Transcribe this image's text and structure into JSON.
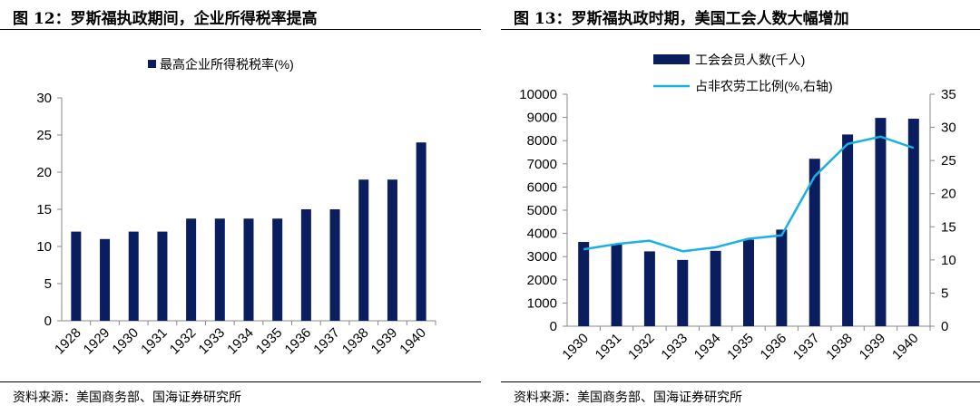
{
  "left": {
    "title": "图 12：罗斯福执政期间，企业所得税率提高",
    "source": "资料来源：美国商务部、国海证券研究所"
  },
  "right": {
    "title": "图 13：罗斯福执政时期，美国工会人数大幅增加",
    "source": "资料来源：美国商务部、国海证券研究所"
  },
  "chart_data": [
    {
      "type": "bar",
      "categories": [
        "1928",
        "1929",
        "1930",
        "1931",
        "1932",
        "1933",
        "1934",
        "1935",
        "1936",
        "1937",
        "1938",
        "1939",
        "1940"
      ],
      "series": [
        {
          "name": "最高企业所得税税率(%)",
          "values": [
            12,
            11,
            12,
            12,
            13.75,
            13.75,
            13.75,
            13.75,
            15,
            15,
            19,
            19,
            24
          ],
          "color": "#0a1d5e"
        }
      ],
      "ylim": [
        0,
        30
      ],
      "yticks": [
        "0",
        "5",
        "10",
        "15",
        "20",
        "25",
        "30"
      ],
      "legend_position": "top",
      "grid": false
    },
    {
      "type": "bar+line",
      "categories": [
        "1930",
        "1931",
        "1932",
        "1933",
        "1934",
        "1935",
        "1936",
        "1937",
        "1938",
        "1939",
        "1940"
      ],
      "series": [
        {
          "name": "工会会员人数(千人)",
          "type": "bar",
          "axis": "left",
          "values": [
            3632,
            3526,
            3226,
            2857,
            3249,
            3728,
            4164,
            7218,
            8265,
            8980,
            8944
          ],
          "color": "#0a1d5e"
        },
        {
          "name": "占非农劳工比例(%,右轴)",
          "type": "line",
          "axis": "right",
          "values": [
            11.6,
            12.4,
            12.9,
            11.3,
            11.9,
            13.2,
            13.7,
            22.6,
            27.5,
            28.6,
            26.9
          ],
          "color": "#19b0e6"
        }
      ],
      "ylim": [
        0,
        10000
      ],
      "yticks": [
        "0",
        "1000",
        "2000",
        "3000",
        "4000",
        "5000",
        "6000",
        "7000",
        "8000",
        "9000",
        "10000"
      ],
      "y2lim": [
        0,
        35
      ],
      "y2ticks": [
        "0",
        "5",
        "10",
        "15",
        "20",
        "25",
        "30",
        "35"
      ],
      "legend_position": "top-left",
      "grid": false
    }
  ]
}
